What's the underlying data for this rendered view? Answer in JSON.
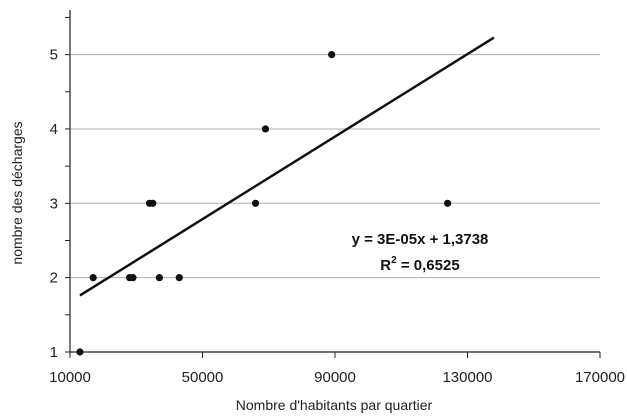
{
  "chart_data": {
    "type": "scatter",
    "xlabel": "Nombre d'habitants par quartier",
    "ylabel": "nombre des décharges",
    "xlim": [
      10000,
      170000
    ],
    "ylim": [
      1,
      5.6
    ],
    "x_ticks": [
      "10000",
      "50000",
      "90000",
      "130000",
      "170000"
    ],
    "x_tick_values": [
      10000,
      50000,
      90000,
      130000,
      170000
    ],
    "y_ticks": [
      "1",
      "2",
      "3",
      "4",
      "5"
    ],
    "y_tick_values": [
      1,
      2,
      3,
      4,
      5
    ],
    "grid": "horizontal",
    "points": [
      {
        "x": 13000,
        "y": 1
      },
      {
        "x": 17000,
        "y": 2
      },
      {
        "x": 28000,
        "y": 2
      },
      {
        "x": 29000,
        "y": 2
      },
      {
        "x": 34000,
        "y": 3
      },
      {
        "x": 35000,
        "y": 3
      },
      {
        "x": 37000,
        "y": 2
      },
      {
        "x": 43000,
        "y": 2
      },
      {
        "x": 66000,
        "y": 3
      },
      {
        "x": 69000,
        "y": 4
      },
      {
        "x": 89000,
        "y": 5
      },
      {
        "x": 124000,
        "y": 3
      }
    ],
    "trendline": {
      "x": [
        13000,
        138000
      ],
      "y": [
        1.76,
        5.23
      ]
    },
    "equation": {
      "line1": "y = 3E-05x + 1,3738",
      "r2_prefix": "R",
      "r2_exp": "2",
      "r2_suffix": " = 0,6525"
    },
    "colors": {
      "points": "#111111",
      "line": "#111111",
      "grid": "#b0b0b0",
      "axis": "#222222"
    }
  }
}
